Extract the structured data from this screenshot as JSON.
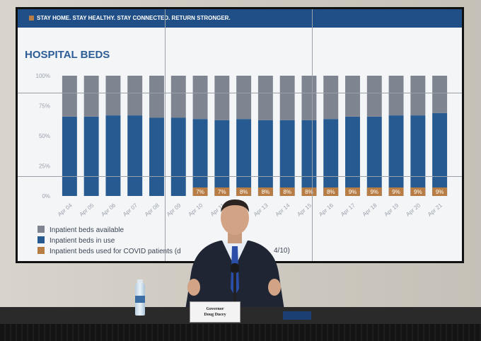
{
  "banner": {
    "text": "STAY HOME. STAY HEALTHY. STAY CONNECTED. RETURN STRONGER."
  },
  "chart": {
    "title": "HOSPITAL BEDS"
  },
  "chart_data": {
    "type": "bar",
    "title": "HOSPITAL BEDS",
    "ylim": [
      0,
      100
    ],
    "yticks": [
      "100%",
      "75%",
      "50%",
      "25%",
      "0%"
    ],
    "categories": [
      "Apr 04",
      "Apr 05",
      "Apr 06",
      "Apr 07",
      "Apr 08",
      "Apr 09",
      "Apr 10",
      "Apr 11",
      "Apr 12",
      "Apr 13",
      "Apr 14",
      "Apr 15",
      "Apr 16",
      "Apr 17",
      "Apr 18",
      "Apr 19",
      "Apr 20",
      "Apr 21"
    ],
    "series": [
      {
        "name": "Inpatient beds in use",
        "values": [
          66,
          66,
          67,
          67,
          65,
          65,
          64,
          63,
          64,
          63,
          63,
          63,
          64,
          66,
          66,
          67,
          67,
          69
        ]
      },
      {
        "name": "Inpatient beds available",
        "values": [
          34,
          34,
          33,
          33,
          35,
          35,
          36,
          37,
          36,
          37,
          37,
          37,
          36,
          34,
          34,
          33,
          33,
          31
        ]
      },
      {
        "name": "Inpatient beds used for COVID patients",
        "values": [
          null,
          null,
          null,
          null,
          null,
          null,
          7,
          7,
          8,
          8,
          8,
          8,
          8,
          9,
          9,
          9,
          9,
          9
        ]
      }
    ],
    "data_labels": [
      "",
      "",
      "",
      "",
      "",
      "",
      "7%",
      "7%",
      "8%",
      "8%",
      "8%",
      "8%",
      "8%",
      "9%",
      "9%",
      "9%",
      "9%",
      "9%"
    ],
    "colors": {
      "available": "#7e8590",
      "in_use": "#265a91",
      "covid": "#b87d45"
    },
    "legend": "bottom-left",
    "grid": false
  },
  "legend": {
    "items": [
      {
        "label": "Inpatient beds available",
        "color": "#7e8590"
      },
      {
        "label": "Inpatient beds in use",
        "color": "#265a91"
      },
      {
        "label": "Inpatient beds used for COVID patients (d",
        "color": "#b87d45"
      }
    ],
    "note": "4/10)"
  },
  "nameplate": {
    "line1": "Governor",
    "line2": "Doug Ducey"
  }
}
